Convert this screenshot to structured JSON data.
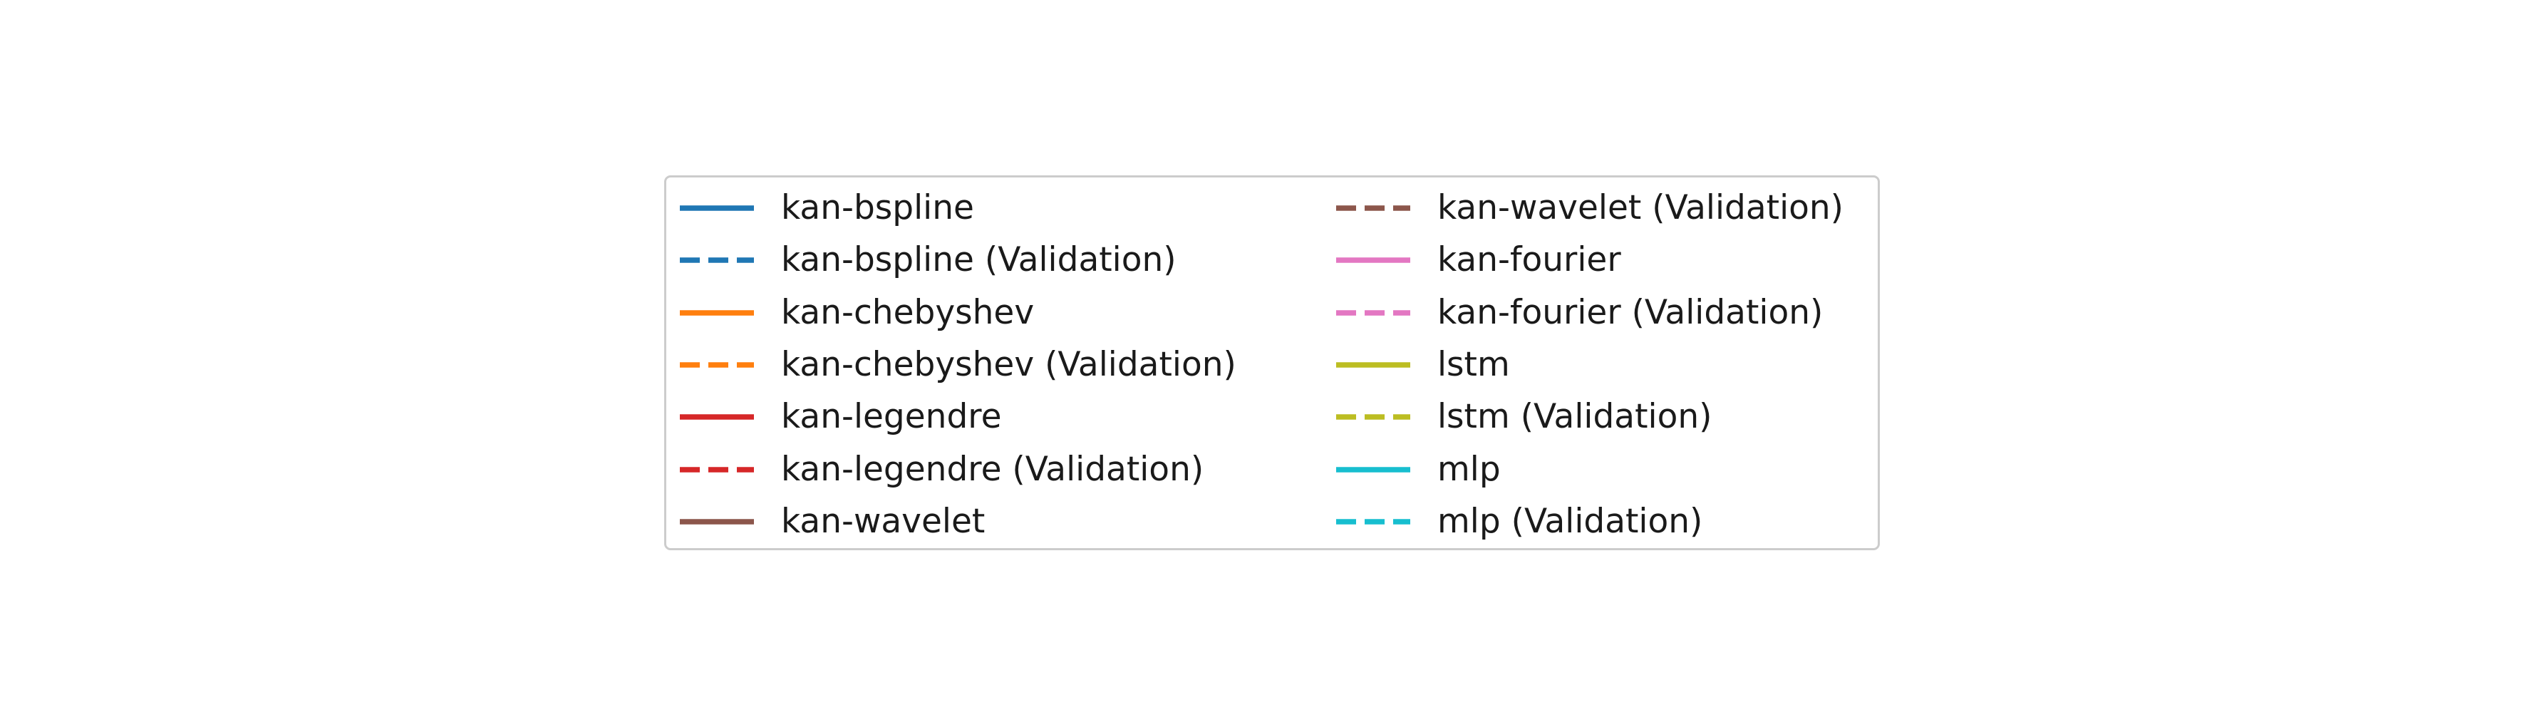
{
  "chart_data": {
    "type": "legend",
    "legend": {
      "columns": 2,
      "frame": true,
      "entries": [
        {
          "label": "kan-bspline",
          "color": "#1f77b4",
          "linestyle": "solid"
        },
        {
          "label": "kan-bspline (Validation)",
          "color": "#1f77b4",
          "linestyle": "dashed"
        },
        {
          "label": "kan-chebyshev",
          "color": "#ff7f0e",
          "linestyle": "solid"
        },
        {
          "label": "kan-chebyshev (Validation)",
          "color": "#ff7f0e",
          "linestyle": "dashed"
        },
        {
          "label": "kan-legendre",
          "color": "#d62728",
          "linestyle": "solid"
        },
        {
          "label": "kan-legendre (Validation)",
          "color": "#d62728",
          "linestyle": "dashed"
        },
        {
          "label": "kan-wavelet",
          "color": "#8c564b",
          "linestyle": "solid"
        },
        {
          "label": "kan-wavelet (Validation)",
          "color": "#8c564b",
          "linestyle": "dashed"
        },
        {
          "label": "kan-fourier",
          "color": "#e377c2",
          "linestyle": "solid"
        },
        {
          "label": "kan-fourier (Validation)",
          "color": "#e377c2",
          "linestyle": "dashed"
        },
        {
          "label": "lstm",
          "color": "#bcbd22",
          "linestyle": "solid"
        },
        {
          "label": "lstm (Validation)",
          "color": "#bcbd22",
          "linestyle": "dashed"
        },
        {
          "label": "mlp",
          "color": "#17becf",
          "linestyle": "solid"
        },
        {
          "label": "mlp (Validation)",
          "color": "#17becf",
          "linestyle": "dashed"
        }
      ]
    }
  }
}
